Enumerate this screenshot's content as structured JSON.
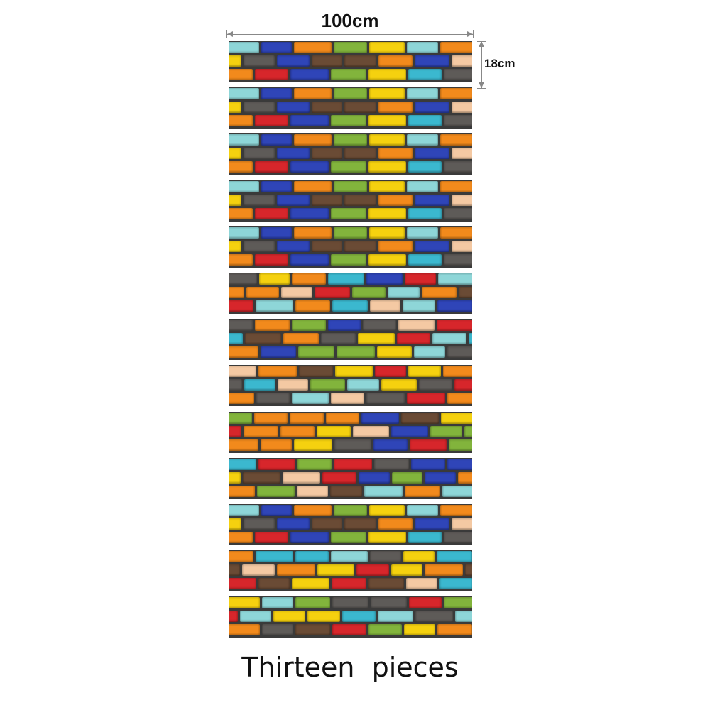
{
  "dimensions": {
    "width_label": "100cm",
    "height_label": "18cm"
  },
  "caption": "Thirteen  pieces",
  "panels": {
    "count": 13
  },
  "palette": {
    "red": "#d7262b",
    "orange": "#f28a1c",
    "yellow": "#f5d10f",
    "blue": "#2f45b8",
    "cyan": "#3bb8cf",
    "green": "#82b43c",
    "peach": "#f4c9a3",
    "gray": "#5e5b58",
    "brown": "#6a4b35",
    "light_cyan": "#8ed6d8",
    "mortar": "#3a3a3a"
  }
}
